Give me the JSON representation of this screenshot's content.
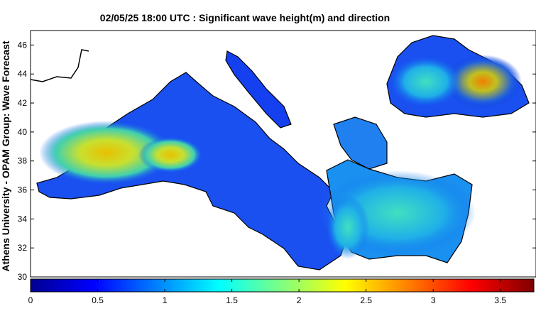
{
  "chart_data": {
    "type": "map",
    "title": "02/05/25 18:00 UTC : Significant wave height(m) and direction",
    "ylabel": "Athens University - OPAM Group: Wave Forecast",
    "ylim": [
      30,
      47
    ],
    "yticks": [
      30,
      32,
      34,
      36,
      38,
      40,
      42,
      44,
      46
    ],
    "colorbar": {
      "lim": [
        0,
        3.75
      ],
      "ticks": [
        0,
        0.5,
        1,
        1.5,
        2,
        2.5,
        3,
        3.5
      ],
      "colormap": "jet"
    }
  }
}
